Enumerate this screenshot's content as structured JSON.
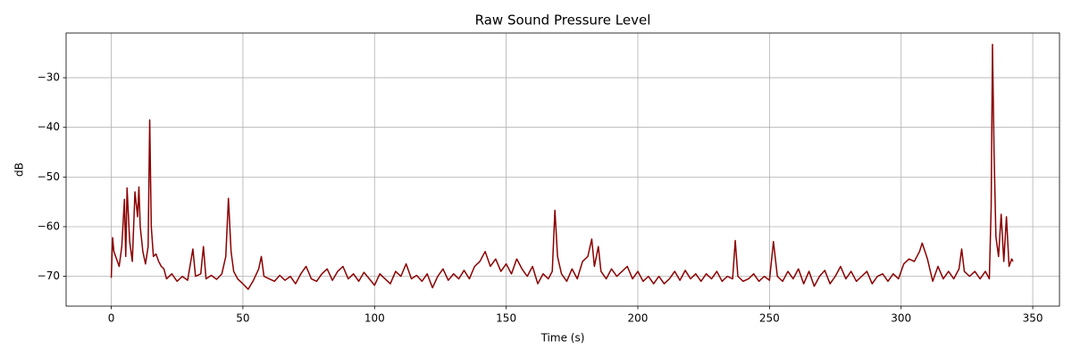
{
  "chart_data": {
    "type": "line",
    "title": "Raw Sound Pressure Level",
    "x_label": "Time (s)",
    "y_label": "dB",
    "color": "#8b0000",
    "grid": true,
    "xlim": [
      -17.15,
      360.15
    ],
    "ylim": [
      -76,
      -21
    ],
    "xticks": [
      0,
      50,
      100,
      150,
      200,
      250,
      300,
      350
    ],
    "yticks": [
      {
        "value": -70,
        "label": "−70"
      },
      {
        "value": -60,
        "label": "−60"
      },
      {
        "value": -50,
        "label": "−50"
      },
      {
        "value": -40,
        "label": "−40"
      },
      {
        "value": -30,
        "label": "−30"
      }
    ],
    "x": [
      0,
      0.5,
      1,
      2,
      3,
      4,
      5,
      5.5,
      6,
      7,
      8,
      9,
      10,
      10.5,
      11,
      12,
      13,
      14,
      14.6,
      15.2,
      16,
      17,
      18,
      19,
      20,
      21,
      23,
      25,
      27,
      29,
      31,
      32,
      34,
      35,
      36,
      38,
      40,
      42,
      43.5,
      44.5,
      45.5,
      46.5,
      48,
      50,
      52,
      54,
      56,
      57,
      58,
      60,
      62,
      64,
      66,
      68,
      70,
      72,
      74,
      76,
      78,
      80,
      82,
      84,
      86,
      88,
      90,
      92,
      94,
      96,
      98,
      100,
      102,
      104,
      106,
      108,
      110,
      112,
      114,
      116,
      118,
      120,
      122,
      124,
      126,
      128,
      130,
      132,
      134,
      136,
      138,
      140,
      142,
      144,
      146,
      148,
      150,
      152,
      154,
      156,
      158,
      160,
      162,
      164,
      166,
      167.5,
      168.5,
      169.5,
      171,
      173,
      175,
      177,
      179,
      181,
      182.5,
      183.5,
      185,
      186,
      188,
      190,
      192,
      194,
      196,
      198,
      200,
      202,
      204,
      206,
      208,
      210,
      212,
      214,
      216,
      218,
      220,
      222,
      224,
      226,
      228,
      230,
      232,
      234,
      236,
      237,
      238,
      240,
      242,
      244,
      246,
      248,
      250,
      251.5,
      253,
      255,
      257,
      259,
      261,
      263,
      265,
      267,
      269,
      271,
      273,
      275,
      277,
      279,
      281,
      283,
      285,
      287,
      289,
      291,
      293,
      295,
      297,
      299,
      301,
      303,
      305,
      307,
      308,
      310,
      312,
      314,
      316,
      318,
      320,
      322,
      323,
      324,
      326,
      328,
      330,
      332,
      333.5,
      334.2,
      334.7,
      335.3,
      336,
      337,
      338,
      339,
      340,
      341,
      342,
      342.5
    ],
    "values": [
      -70.3,
      -62.2,
      -65,
      -66.5,
      -68,
      -64,
      -54.5,
      -66,
      -52.2,
      -63,
      -67,
      -53,
      -58,
      -52,
      -60,
      -65,
      -67.5,
      -64,
      -38.5,
      -60,
      -66,
      -65.5,
      -67,
      -68,
      -68.5,
      -70.5,
      -69.5,
      -71,
      -70,
      -70.8,
      -64.5,
      -70,
      -69.5,
      -64,
      -70.5,
      -69.8,
      -70.6,
      -69.5,
      -66,
      -54.3,
      -65,
      -69,
      -70.5,
      -71.5,
      -72.6,
      -70.8,
      -68.5,
      -66,
      -70,
      -70.5,
      -71,
      -69.8,
      -70.8,
      -70,
      -71.5,
      -69.5,
      -68,
      -70.5,
      -71,
      -69.5,
      -68.5,
      -70.8,
      -69,
      -68,
      -70.5,
      -69.5,
      -71,
      -69.2,
      -70.5,
      -71.8,
      -69.5,
      -70.5,
      -71.5,
      -69,
      -70,
      -67.5,
      -70.5,
      -69.8,
      -71,
      -69.5,
      -72.3,
      -70,
      -68.5,
      -70.8,
      -69.5,
      -70.5,
      -68.8,
      -70.5,
      -68,
      -67,
      -65,
      -68,
      -66.5,
      -69,
      -67.5,
      -69.5,
      -66.5,
      -68.5,
      -70,
      -68,
      -71.5,
      -69.5,
      -70.5,
      -69,
      -56.7,
      -66,
      -69.5,
      -71,
      -68.5,
      -70.5,
      -67,
      -66,
      -62.5,
      -68,
      -64,
      -69,
      -70.5,
      -68.5,
      -70,
      -69,
      -68,
      -70.5,
      -69,
      -71,
      -70,
      -71.5,
      -70,
      -71.5,
      -70.5,
      -69,
      -70.8,
      -68.8,
      -70.5,
      -69.5,
      -71,
      -69.5,
      -70.5,
      -69,
      -71,
      -70,
      -70.5,
      -62.8,
      -70,
      -71,
      -70.5,
      -69.5,
      -71,
      -70,
      -70.8,
      -63,
      -70,
      -71,
      -69,
      -70.5,
      -68.5,
      -71.5,
      -69,
      -72,
      -70,
      -68.8,
      -71.5,
      -70,
      -68,
      -70.5,
      -69,
      -71,
      -70,
      -69,
      -71.5,
      -70,
      -69.5,
      -71,
      -69.5,
      -70.5,
      -67.5,
      -66.5,
      -67,
      -65,
      -63.3,
      -66.5,
      -71,
      -68,
      -70.5,
      -69,
      -70.5,
      -68.5,
      -64.5,
      -69,
      -70,
      -69,
      -70.5,
      -69,
      -70.5,
      -56,
      -23.3,
      -45,
      -62,
      -66,
      -57.5,
      -67,
      -58,
      -68,
      -66.5,
      -67
    ]
  }
}
